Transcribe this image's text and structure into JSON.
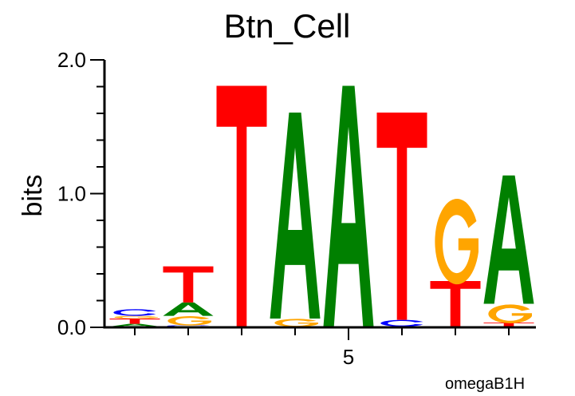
{
  "chart_data": {
    "type": "sequence-logo",
    "title": "Btn_Cell",
    "ylabel": "bits",
    "xlabel": "",
    "footer": "omegaB1H",
    "ylim": [
      0,
      2.0
    ],
    "yticks": [
      "0.0",
      "1.0",
      "2.0"
    ],
    "xtick_labels": [
      {
        "position": 5,
        "label": "5"
      }
    ],
    "colors": {
      "A": "#008000",
      "C": "#0000ff",
      "G": "#ffa500",
      "T": "#ff0000"
    },
    "positions": [
      {
        "position": 1,
        "stack": [
          {
            "letter": "A",
            "bits": 0.02
          },
          {
            "letter": "T",
            "bits": 0.04
          },
          {
            "letter": "G",
            "bits": 0.02
          },
          {
            "letter": "C",
            "bits": 0.05
          }
        ]
      },
      {
        "position": 2,
        "stack": [
          {
            "letter": "C",
            "bits": 0.01
          },
          {
            "letter": "G",
            "bits": 0.07
          },
          {
            "letter": "A",
            "bits": 0.1
          },
          {
            "letter": "T",
            "bits": 0.27
          }
        ]
      },
      {
        "position": 3,
        "stack": [
          {
            "letter": "T",
            "bits": 1.8
          }
        ]
      },
      {
        "position": 4,
        "stack": [
          {
            "letter": "G",
            "bits": 0.06
          },
          {
            "letter": "A",
            "bits": 1.54
          }
        ]
      },
      {
        "position": 5,
        "stack": [
          {
            "letter": "A",
            "bits": 1.8
          }
        ]
      },
      {
        "position": 6,
        "stack": [
          {
            "letter": "C",
            "bits": 0.05
          },
          {
            "letter": "T",
            "bits": 1.55
          }
        ]
      },
      {
        "position": 7,
        "stack": [
          {
            "letter": "T",
            "bits": 0.34
          },
          {
            "letter": "G",
            "bits": 0.64
          }
        ]
      },
      {
        "position": 8,
        "stack": [
          {
            "letter": "T",
            "bits": 0.03
          },
          {
            "letter": "G",
            "bits": 0.14
          },
          {
            "letter": "A",
            "bits": 0.96
          }
        ]
      }
    ]
  }
}
